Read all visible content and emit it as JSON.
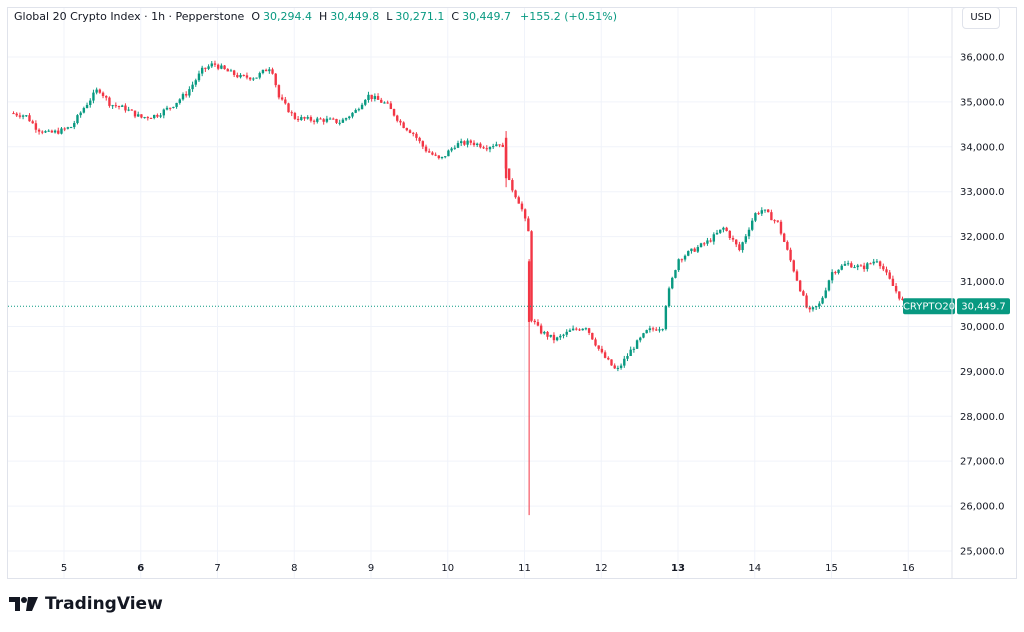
{
  "legend": {
    "symbol": "Global 20 Crypto Index · 1h · Pepperstone",
    "o_label": "O",
    "o_value": "30,294.4",
    "h_label": "H",
    "h_value": "30,449.8",
    "l_label": "L",
    "l_value": "30,271.1",
    "c_label": "C",
    "c_value": "30,449.7",
    "change": "+155.2 (+0.51%)"
  },
  "currency": "USD",
  "price_badge": {
    "ticker": "CRYPTO20",
    "price": "30,449.7",
    "price_value": 30449.7
  },
  "brand": {
    "name": "TradingView",
    "logo_icon": "tradingview-logo-icon"
  },
  "colors": {
    "up": "#089981",
    "down": "#f23645",
    "grid": "#f0f3fa",
    "text": "#131722",
    "last_price_line": "#089981"
  },
  "chart_data": {
    "type": "candlestick",
    "timeframe": "1h",
    "ylim": [
      24800,
      36600
    ],
    "y_ticks": [
      {
        "v": 36000,
        "label": "36,000.0"
      },
      {
        "v": 35000,
        "label": "35,000.0"
      },
      {
        "v": 34000,
        "label": "34,000.0"
      },
      {
        "v": 33000,
        "label": "33,000.0"
      },
      {
        "v": 32000,
        "label": "32,000.0"
      },
      {
        "v": 31000,
        "label": "31,000.0"
      },
      {
        "v": 30000,
        "label": "30,000.0"
      },
      {
        "v": 29000,
        "label": "29,000.0"
      },
      {
        "v": 28000,
        "label": "28,000.0"
      },
      {
        "v": 27000,
        "label": "27,000.0"
      },
      {
        "v": 26000,
        "label": "26,000.0"
      },
      {
        "v": 25000,
        "label": "25,000.0"
      }
    ],
    "x_ticks": [
      {
        "day": 5,
        "label": "5",
        "bold": false
      },
      {
        "day": 6,
        "label": "6",
        "bold": true
      },
      {
        "day": 7,
        "label": "7",
        "bold": false
      },
      {
        "day": 8,
        "label": "8",
        "bold": false
      },
      {
        "day": 9,
        "label": "9",
        "bold": false
      },
      {
        "day": 10,
        "label": "10",
        "bold": false
      },
      {
        "day": 11,
        "label": "11",
        "bold": false
      },
      {
        "day": 12,
        "label": "12",
        "bold": false
      },
      {
        "day": 13,
        "label": "13",
        "bold": true
      },
      {
        "day": 14,
        "label": "14",
        "bold": false
      },
      {
        "day": 15,
        "label": "15",
        "bold": false
      },
      {
        "day": 16,
        "label": "16",
        "bold": false
      }
    ],
    "x_range_days": [
      4.27,
      16.57
    ],
    "close_path": [
      [
        4.3,
        34750
      ],
      [
        4.5,
        34700
      ],
      [
        4.65,
        34400
      ],
      [
        4.8,
        34300
      ],
      [
        4.95,
        34350
      ],
      [
        5.1,
        34450
      ],
      [
        5.25,
        34850
      ],
      [
        5.45,
        35300
      ],
      [
        5.6,
        34950
      ],
      [
        5.8,
        34850
      ],
      [
        6.0,
        34650
      ],
      [
        6.2,
        34700
      ],
      [
        6.4,
        34900
      ],
      [
        6.6,
        35200
      ],
      [
        6.8,
        35700
      ],
      [
        6.95,
        35850
      ],
      [
        7.1,
        35700
      ],
      [
        7.3,
        35550
      ],
      [
        7.5,
        35550
      ],
      [
        7.7,
        35800
      ],
      [
        7.8,
        35100
      ],
      [
        8.0,
        34650
      ],
      [
        8.2,
        34600
      ],
      [
        8.4,
        34600
      ],
      [
        8.6,
        34550
      ],
      [
        8.8,
        34800
      ],
      [
        8.95,
        35150
      ],
      [
        9.2,
        34950
      ],
      [
        9.4,
        34500
      ],
      [
        9.55,
        34300
      ],
      [
        9.7,
        33950
      ],
      [
        9.9,
        33700
      ],
      [
        10.1,
        34050
      ],
      [
        10.3,
        34100
      ],
      [
        10.5,
        34000
      ],
      [
        10.7,
        34100
      ],
      [
        10.8,
        33200
      ],
      [
        10.95,
        32700
      ],
      [
        11.05,
        32100
      ],
      [
        11.08,
        30200
      ],
      [
        11.2,
        29900
      ],
      [
        11.4,
        29700
      ],
      [
        11.6,
        29900
      ],
      [
        11.8,
        30000
      ],
      [
        12.0,
        29400
      ],
      [
        12.2,
        29000
      ],
      [
        12.4,
        29500
      ],
      [
        12.6,
        29900
      ],
      [
        12.8,
        30000
      ],
      [
        12.85,
        30600
      ],
      [
        13.0,
        31500
      ],
      [
        13.2,
        31700
      ],
      [
        13.4,
        31900
      ],
      [
        13.6,
        32200
      ],
      [
        13.8,
        31700
      ],
      [
        14.0,
        32500
      ],
      [
        14.1,
        32600
      ],
      [
        14.3,
        32300
      ],
      [
        14.5,
        31300
      ],
      [
        14.7,
        30300
      ],
      [
        14.85,
        30500
      ],
      [
        15.0,
        31200
      ],
      [
        15.2,
        31400
      ],
      [
        15.4,
        31300
      ],
      [
        15.6,
        31500
      ],
      [
        15.8,
        30900
      ],
      [
        16.0,
        30350
      ],
      [
        16.1,
        30450
      ]
    ],
    "extremes": [
      {
        "day": 11.06,
        "low": 25800,
        "high": 31500,
        "open": 31450,
        "close": 30100
      },
      {
        "day": 10.76,
        "low": 33100,
        "high": 34350,
        "open": 34200,
        "close": 33300
      }
    ],
    "last_price": 30449.7
  }
}
